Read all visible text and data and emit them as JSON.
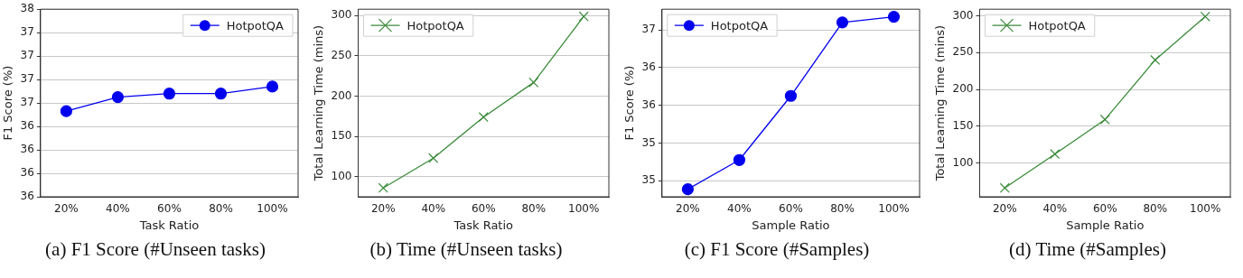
{
  "chart_data": [
    {
      "type": "line",
      "title": "(a) F1 Score (#Unseen tasks)",
      "xlabel": "Task Ratio",
      "ylabel": "F1 Score (%)",
      "categories": [
        "20%",
        "40%",
        "60%",
        "80%",
        "100%"
      ],
      "series": [
        {
          "name": "HotpotQA",
          "color": "#0000ee",
          "values": [
            36.63,
            36.75,
            36.78,
            36.78,
            36.84
          ]
        }
      ],
      "ylim": [
        35.9,
        37.5
      ],
      "yticks": [
        {
          "value": 35.9,
          "label": "36"
        },
        {
          "value": 36.1,
          "label": "36"
        },
        {
          "value": 36.3,
          "label": "36"
        },
        {
          "value": 36.5,
          "label": "36"
        },
        {
          "value": 36.7,
          "label": "37"
        },
        {
          "value": 36.9,
          "label": "37"
        },
        {
          "value": 37.1,
          "label": "37"
        },
        {
          "value": 37.3,
          "label": "37"
        },
        {
          "value": 37.5,
          "label": "38"
        }
      ],
      "grid": "y",
      "legend": "top right",
      "marker": "circle",
      "line_style": "solid"
    },
    {
      "type": "line",
      "title": "(b) Time (#Unseen tasks)",
      "xlabel": "Task Ratio",
      "ylabel": "Total Learning Time (mins)",
      "categories": [
        "20%",
        "40%",
        "60%",
        "80%",
        "100%"
      ],
      "series": [
        {
          "name": "HotpotQA",
          "color": "#3a8a3a",
          "values": [
            86,
            123,
            174,
            217,
            299
          ]
        }
      ],
      "ylim": [
        75,
        308
      ],
      "yticks": [
        100,
        150,
        200,
        250,
        300
      ],
      "grid": "y",
      "legend": "top left",
      "marker": "cross",
      "line_style": "solid"
    },
    {
      "type": "line",
      "title": "(c) F1 Score (#Samples)",
      "xlabel": "Sample Ratio",
      "ylabel": "F1 Score (%)",
      "categories": [
        "20%",
        "40%",
        "60%",
        "80%",
        "100%"
      ],
      "series": [
        {
          "name": "HotpotQA",
          "color": "#0000ee",
          "values": [
            34.91,
            35.22,
            35.9,
            36.68,
            36.74
          ]
        }
      ],
      "ylim": [
        34.83,
        36.82
      ],
      "yticks": [
        {
          "value": 35.0,
          "label": "35"
        },
        {
          "value": 35.4,
          "label": "35"
        },
        {
          "value": 35.8,
          "label": "36"
        },
        {
          "value": 36.2,
          "label": "36"
        },
        {
          "value": 36.6,
          "label": "37"
        }
      ],
      "grid": "y",
      "legend": "top left",
      "marker": "circle",
      "line_style": "solid"
    },
    {
      "type": "line",
      "title": "(d) Time (#Samples)",
      "xlabel": "Sample Ratio",
      "ylabel": "Total Learning Time (mins)",
      "categories": [
        "20%",
        "40%",
        "60%",
        "80%",
        "100%"
      ],
      "series": [
        {
          "name": "HotpotQA",
          "color": "#3a8a3a",
          "values": [
            66,
            112,
            159,
            240,
            299
          ]
        }
      ],
      "ylim": [
        54,
        309
      ],
      "yticks": [
        100,
        150,
        200,
        250,
        300
      ],
      "grid": "y",
      "legend": "top left",
      "marker": "cross",
      "line_style": "solid"
    }
  ]
}
